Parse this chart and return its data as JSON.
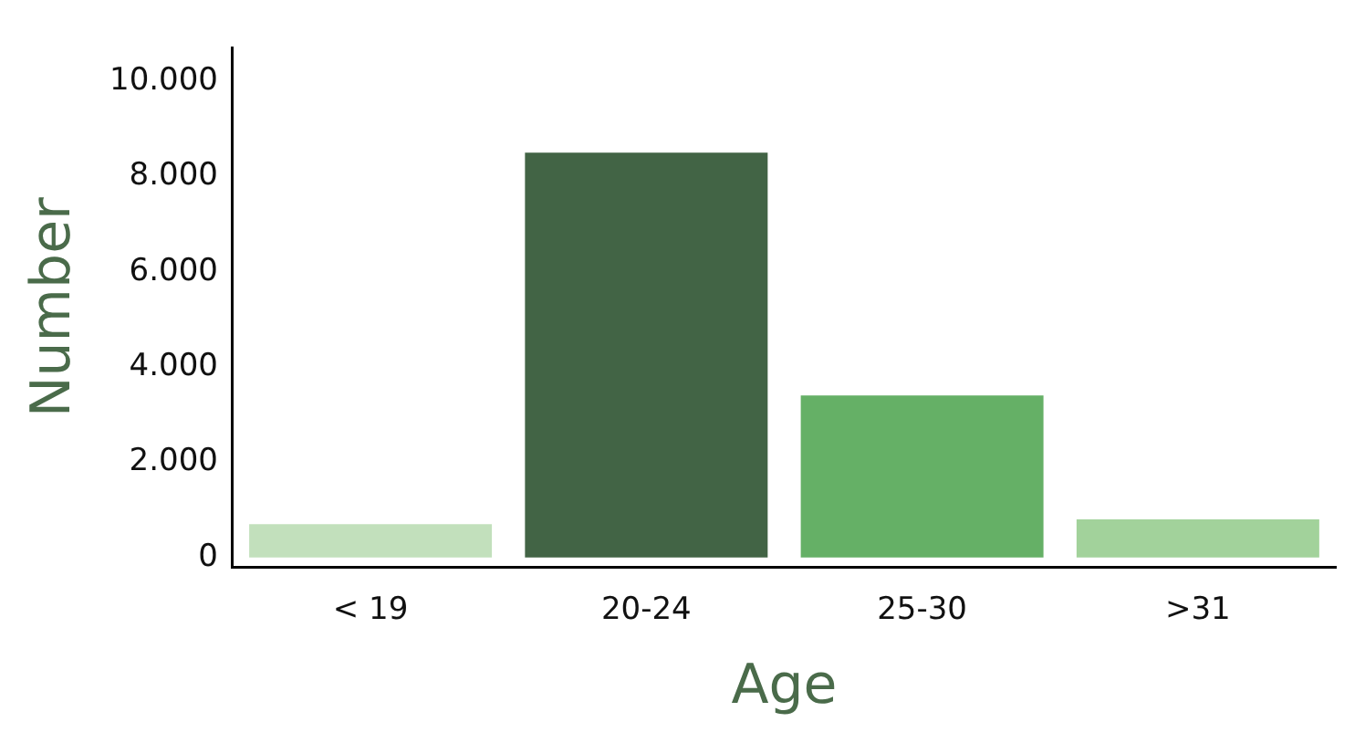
{
  "chart_data": {
    "type": "bar",
    "xlabel": "Age",
    "ylabel": "Number",
    "categories": [
      "< 19",
      "20-24",
      "25-30",
      ">31"
    ],
    "values": [
      700,
      8500,
      3400,
      800
    ],
    "colors": [
      "#c2e0bc",
      "#426445",
      "#65b066",
      "#a2d29b"
    ],
    "ylim": [
      -200,
      10700
    ],
    "yticks": [
      {
        "value": 0,
        "label": "0"
      },
      {
        "value": 2000,
        "label": "2.000"
      },
      {
        "value": 4000,
        "label": "4.000"
      },
      {
        "value": 6000,
        "label": "6.000"
      },
      {
        "value": 8000,
        "label": "8.000"
      },
      {
        "value": 10000,
        "label": "10.000"
      }
    ],
    "grid": false,
    "legend": false
  }
}
